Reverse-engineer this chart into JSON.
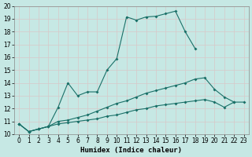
{
  "xlabel": "Humidex (Indice chaleur)",
  "xlim": [
    -0.5,
    23.5
  ],
  "ylim": [
    10,
    20
  ],
  "yticks": [
    10,
    11,
    12,
    13,
    14,
    15,
    16,
    17,
    18,
    19,
    20
  ],
  "xticks": [
    0,
    1,
    2,
    3,
    4,
    5,
    6,
    7,
    8,
    9,
    10,
    11,
    12,
    13,
    14,
    15,
    16,
    17,
    18,
    19,
    20,
    21,
    22,
    23
  ],
  "bg_color": "#c6e8e4",
  "line_color": "#1a7068",
  "grid_color": "#e8e8e8",
  "line1_x": [
    0,
    1,
    2,
    3,
    4,
    5,
    6,
    7,
    8,
    9,
    10,
    11,
    12,
    13,
    14,
    15,
    16,
    17,
    18
  ],
  "line1_y": [
    10.8,
    10.2,
    10.4,
    10.6,
    12.1,
    14.0,
    13.0,
    13.3,
    13.3,
    15.0,
    15.9,
    19.15,
    18.9,
    19.15,
    19.2,
    19.4,
    19.6,
    18.0,
    16.7
  ],
  "line2_x": [
    0,
    1,
    2,
    3,
    4,
    5,
    6,
    7,
    8,
    9,
    10,
    11,
    12,
    13,
    14,
    15,
    16,
    17,
    18,
    19,
    20,
    21,
    22
  ],
  "line2_y": [
    10.8,
    10.2,
    10.4,
    10.6,
    11.0,
    11.1,
    11.3,
    11.5,
    11.8,
    12.1,
    12.4,
    12.6,
    12.9,
    13.2,
    13.4,
    13.6,
    13.8,
    14.0,
    14.3,
    14.4,
    13.5,
    12.9,
    12.5
  ],
  "line3_x": [
    0,
    1,
    2,
    3,
    4,
    5,
    6,
    7,
    8,
    9,
    10,
    11,
    12,
    13,
    14,
    15,
    16,
    17,
    18,
    19,
    20,
    21,
    22,
    23
  ],
  "line3_y": [
    10.8,
    10.2,
    10.4,
    10.6,
    10.8,
    10.9,
    11.0,
    11.1,
    11.2,
    11.4,
    11.5,
    11.7,
    11.9,
    12.0,
    12.2,
    12.3,
    12.4,
    12.5,
    12.6,
    12.7,
    12.5,
    12.1,
    12.5,
    12.5
  ]
}
